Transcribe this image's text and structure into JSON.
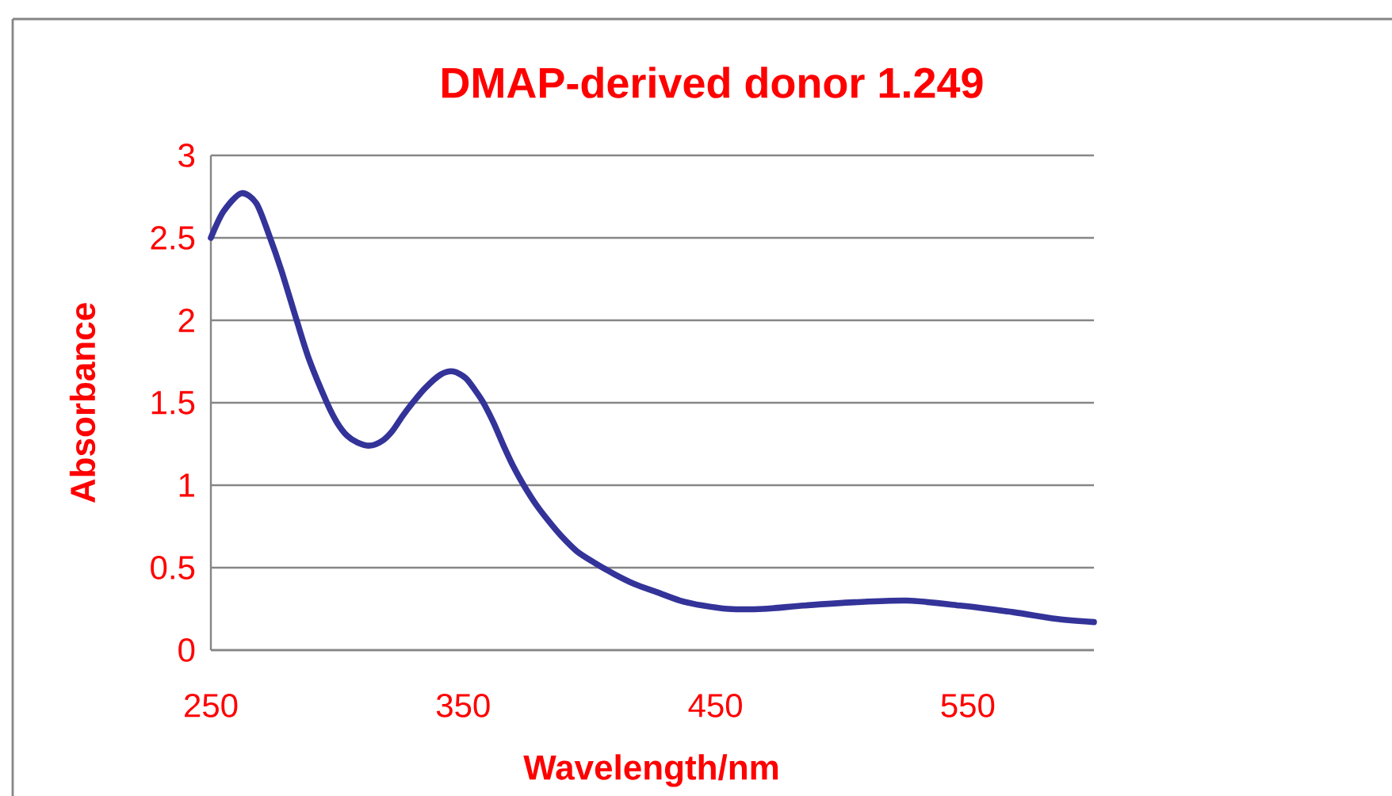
{
  "chart_data": {
    "type": "line",
    "title": "DMAP-derived donor 1.249",
    "xlabel": "Wavelength/nm",
    "ylabel": "Absorbance",
    "x": [
      250,
      255,
      262,
      268,
      273,
      278,
      284,
      289,
      296,
      300,
      304,
      308,
      313,
      318,
      322,
      326,
      330,
      335,
      341,
      346,
      351,
      355,
      358,
      362,
      366,
      370,
      374,
      379,
      384,
      389,
      395,
      402,
      410,
      418,
      427,
      436,
      445,
      455,
      469,
      485,
      505,
      526,
      547,
      568,
      585,
      600
    ],
    "values": [
      2.5,
      2.66,
      2.77,
      2.71,
      2.52,
      2.3,
      2.0,
      1.76,
      1.5,
      1.38,
      1.3,
      1.26,
      1.24,
      1.27,
      1.33,
      1.42,
      1.5,
      1.59,
      1.67,
      1.69,
      1.65,
      1.57,
      1.5,
      1.38,
      1.24,
      1.11,
      1.0,
      0.88,
      0.78,
      0.69,
      0.6,
      0.53,
      0.46,
      0.4,
      0.35,
      0.3,
      0.27,
      0.25,
      0.25,
      0.27,
      0.29,
      0.3,
      0.27,
      0.23,
      0.19,
      0.17
    ],
    "color": "#333399",
    "line_style": "solid",
    "xlim": [
      250,
      600
    ],
    "ylim": [
      0,
      3
    ],
    "xticks": [
      250,
      350,
      450,
      550
    ],
    "yticks": [
      0,
      0.5,
      1,
      1.5,
      2,
      2.5,
      3
    ],
    "grid": "y"
  }
}
